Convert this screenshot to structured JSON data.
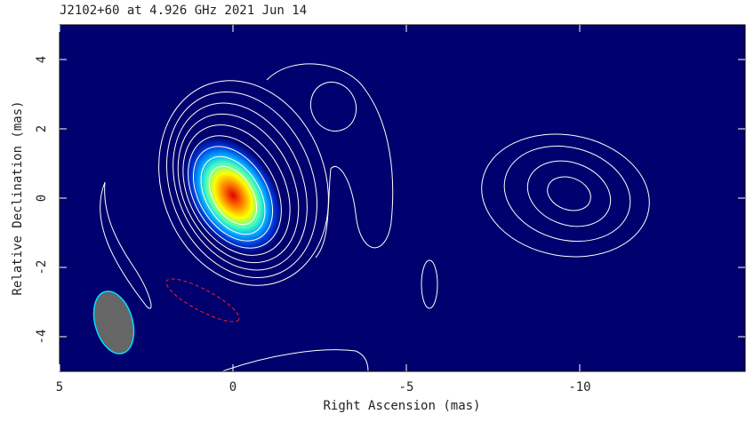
{
  "chart_data": {
    "type": "image",
    "title": "J2102+60 at 4.926 GHz 2021 Jun 14",
    "x_label": "Right Ascension  (mas)",
    "y_label": "Relative Declination  (mas)",
    "xlim": [
      5,
      -14.77
    ],
    "ylim": [
      -5,
      5
    ],
    "xticks": [
      5,
      0,
      -5,
      -10
    ],
    "yticks": [
      -4,
      -2,
      0,
      2,
      4
    ]
  }
}
